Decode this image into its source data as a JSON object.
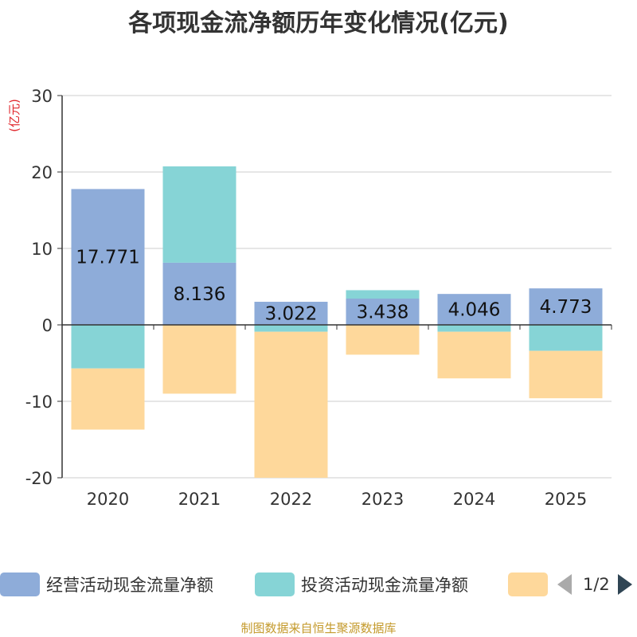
{
  "chart_data": {
    "type": "bar",
    "stacked": true,
    "title": "各项现金流净额历年变化情况(亿元)",
    "ylabel": "(亿元)",
    "ylim": [
      -20,
      30
    ],
    "yticks": [
      -20,
      -10,
      0,
      10,
      20,
      30
    ],
    "categories": [
      "2020",
      "2021",
      "2022",
      "2023",
      "2024",
      "2025"
    ],
    "series": [
      {
        "name": "经营活动现金流量净额",
        "color": "#8eacd9",
        "values": [
          17.771,
          8.136,
          3.022,
          3.438,
          4.046,
          4.773
        ]
      },
      {
        "name": "投资活动现金流量净额",
        "color": "#86d4d6",
        "values": [
          -5.7,
          12.6,
          -0.9,
          1.1,
          -0.9,
          -3.4
        ]
      },
      {
        "name": "",
        "color": "#fed89b",
        "values": [
          -8.0,
          -9.0,
          -19.2,
          -3.9,
          -6.1,
          -6.2
        ]
      }
    ],
    "data_labels": [
      "17.771",
      "8.136",
      "3.022",
      "3.438",
      "4.046",
      "4.773"
    ],
    "legend": "bottom"
  },
  "legend": {
    "page_text": "1/2",
    "prev_icon": "triangle-left-icon",
    "next_icon": "triangle-right-icon"
  },
  "footer": {
    "source": "制图数据来自恒生聚源数据库"
  }
}
